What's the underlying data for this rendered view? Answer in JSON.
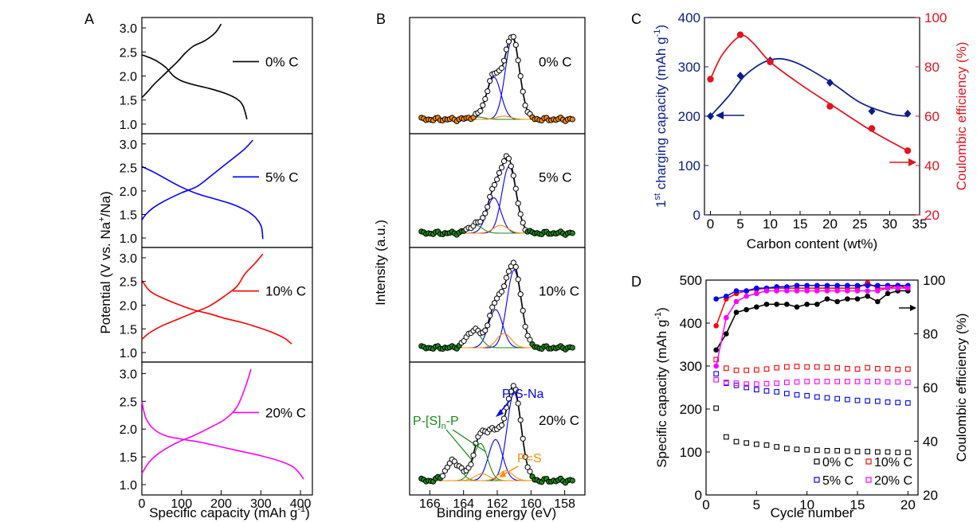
{
  "colors": {
    "black": "#000000",
    "blue": "#0000ff",
    "red": "#ff0000",
    "magenta": "#ff00ff",
    "green": "#1a8a1a",
    "orange": "#ff8c00",
    "navy": "#0a1d8c",
    "crimson": "#e8111e"
  },
  "chart_data": [
    {
      "panel": "A",
      "type": "line",
      "panel_label": "A",
      "xlabel_main": "Specific capacity (mAh g",
      "xlabel_sup": "-1",
      "xlabel_end": ")",
      "ylabel_main": "Potential (V vs. Na",
      "ylabel_sup": "+",
      "ylabel_end": "/Na)",
      "xlim": [
        0,
        430
      ],
      "ylim": [
        0.8,
        3.2
      ],
      "x_ticks": [
        "0",
        "100",
        "200",
        "300",
        "400"
      ],
      "y_ticks": [
        "1.0",
        "1.5",
        "2.0",
        "2.5",
        "3.0"
      ],
      "subplots": [
        {
          "label": "0% C",
          "color": "#000000",
          "discharge": [
            [
              0,
              2.44
            ],
            [
              20,
              2.38
            ],
            [
              40,
              2.3
            ],
            [
              60,
              2.18
            ],
            [
              80,
              2.0
            ],
            [
              100,
              1.9
            ],
            [
              130,
              1.82
            ],
            [
              170,
              1.74
            ],
            [
              210,
              1.64
            ],
            [
              240,
              1.52
            ],
            [
              255,
              1.38
            ],
            [
              265,
              1.1
            ]
          ],
          "charge": [
            [
              0,
              1.55
            ],
            [
              15,
              1.68
            ],
            [
              30,
              1.82
            ],
            [
              50,
              1.98
            ],
            [
              70,
              2.14
            ],
            [
              90,
              2.3
            ],
            [
              110,
              2.48
            ],
            [
              130,
              2.62
            ],
            [
              160,
              2.74
            ],
            [
              185,
              2.9
            ],
            [
              200,
              3.08
            ]
          ]
        },
        {
          "label": "5% C",
          "color": "#0000ff",
          "discharge": [
            [
              0,
              2.52
            ],
            [
              30,
              2.4
            ],
            [
              60,
              2.26
            ],
            [
              100,
              2.08
            ],
            [
              140,
              1.94
            ],
            [
              180,
              1.84
            ],
            [
              220,
              1.74
            ],
            [
              250,
              1.64
            ],
            [
              275,
              1.52
            ],
            [
              292,
              1.38
            ],
            [
              302,
              1.22
            ],
            [
              305,
              0.98
            ]
          ],
          "charge": [
            [
              0,
              1.38
            ],
            [
              10,
              1.5
            ],
            [
              30,
              1.65
            ],
            [
              60,
              1.8
            ],
            [
              100,
              1.96
            ],
            [
              140,
              2.1
            ],
            [
              180,
              2.36
            ],
            [
              210,
              2.56
            ],
            [
              240,
              2.76
            ],
            [
              260,
              2.9
            ],
            [
              280,
              3.08
            ]
          ]
        },
        {
          "label": "10% C",
          "color": "#ff0000",
          "discharge": [
            [
              0,
              2.52
            ],
            [
              20,
              2.3
            ],
            [
              50,
              2.16
            ],
            [
              90,
              2.02
            ],
            [
              130,
              1.9
            ],
            [
              170,
              1.82
            ],
            [
              210,
              1.72
            ],
            [
              250,
              1.64
            ],
            [
              290,
              1.54
            ],
            [
              330,
              1.42
            ],
            [
              360,
              1.3
            ],
            [
              378,
              1.18
            ]
          ],
          "charge": [
            [
              0,
              1.28
            ],
            [
              20,
              1.42
            ],
            [
              50,
              1.56
            ],
            [
              90,
              1.7
            ],
            [
              130,
              1.84
            ],
            [
              170,
              1.98
            ],
            [
              210,
              2.2
            ],
            [
              240,
              2.4
            ],
            [
              260,
              2.66
            ],
            [
              285,
              2.88
            ],
            [
              305,
              3.08
            ]
          ]
        },
        {
          "label": "20% C",
          "color": "#ff00ff",
          "discharge": [
            [
              0,
              2.5
            ],
            [
              10,
              2.2
            ],
            [
              30,
              2.0
            ],
            [
              60,
              1.88
            ],
            [
              100,
              1.82
            ],
            [
              150,
              1.76
            ],
            [
              200,
              1.68
            ],
            [
              250,
              1.6
            ],
            [
              300,
              1.52
            ],
            [
              350,
              1.42
            ],
            [
              385,
              1.3
            ],
            [
              408,
              1.1
            ]
          ],
          "charge": [
            [
              0,
              1.2
            ],
            [
              20,
              1.42
            ],
            [
              50,
              1.6
            ],
            [
              90,
              1.76
            ],
            [
              130,
              1.88
            ],
            [
              170,
              2.02
            ],
            [
              210,
              2.18
            ],
            [
              240,
              2.4
            ],
            [
              262,
              2.78
            ],
            [
              275,
              3.08
            ]
          ]
        }
      ]
    },
    {
      "panel": "B",
      "type": "line",
      "panel_label": "B",
      "xlabel": "Binding energy (eV)",
      "ylabel": "Intensity (a.u.)",
      "xlim": [
        167.2,
        156.8
      ],
      "x_ticks": [
        "166",
        "164",
        "162",
        "160",
        "158"
      ],
      "subplots": [
        {
          "label": "0% C",
          "marker_color": "#ff8c00",
          "peaks": [
            {
              "center": 161.1,
              "height": 1.0,
              "color": "#0000ff"
            },
            {
              "center": 162.2,
              "height": 0.52,
              "color": "#0000ff"
            },
            {
              "center": 163.2,
              "height": 0.03,
              "color": "#1a8a1a"
            },
            {
              "center": 161.6,
              "height": 0.04,
              "color": "#ff8c00"
            }
          ]
        },
        {
          "label": "5% C",
          "marker_color": "#1a8a1a",
          "peaks": [
            {
              "center": 161.3,
              "height": 0.85,
              "color": "#0000ff"
            },
            {
              "center": 162.2,
              "height": 0.45,
              "color": "#0000ff"
            },
            {
              "center": 163.3,
              "height": 0.1,
              "color": "#1a8a1a"
            },
            {
              "center": 161.8,
              "height": 0.1,
              "color": "#ff8c00"
            }
          ]
        },
        {
          "label": "10% C",
          "marker_color": "#1a8a1a",
          "peaks": [
            {
              "center": 161.0,
              "height": 0.98,
              "color": "#0000ff"
            },
            {
              "center": 162.1,
              "height": 0.48,
              "color": "#0000ff"
            },
            {
              "center": 163.4,
              "height": 0.22,
              "color": "#1a8a1a"
            },
            {
              "center": 161.6,
              "height": 0.18,
              "color": "#ff8c00"
            }
          ]
        },
        {
          "label": "20% C",
          "marker_color": "#1a8a1a",
          "peaks": [
            {
              "center": 161.0,
              "height": 0.9,
              "color": "#0000ff"
            },
            {
              "center": 162.1,
              "height": 0.42,
              "color": "#0000ff"
            },
            {
              "center": 163.0,
              "height": 0.38,
              "color": "#1a8a1a"
            },
            {
              "center": 164.6,
              "height": 0.2,
              "color": "#1a8a1a"
            },
            {
              "center": 161.5,
              "height": 0.1,
              "color": "#ff8c00"
            },
            {
              "center": 162.9,
              "height": 0.07,
              "color": "#ff8c00"
            }
          ]
        }
      ],
      "annotations": {
        "psna": "P-S-Na",
        "pss_main": "P-[S]",
        "pss_sub": "n",
        "pss_end": "-P",
        "ps_double": "P=S"
      }
    },
    {
      "panel": "C",
      "type": "scatter",
      "panel_label": "C",
      "xlabel": "Carbon content (wt%)",
      "ylabel_pre": "1",
      "ylabel_sup1": "st",
      "ylabel_mid": " charging capacity (mAh g",
      "ylabel_sup2": "-1",
      "ylabel_end": ")",
      "y2label": "Coulombic efficiency (%)",
      "xlim": [
        -1,
        35
      ],
      "ylim": [
        0,
        400
      ],
      "y2lim": [
        20,
        100
      ],
      "x_ticks": [
        "0",
        "5",
        "10",
        "15",
        "20",
        "25",
        "30",
        "35"
      ],
      "y_ticks": [
        "0",
        "100",
        "200",
        "300",
        "400"
      ],
      "y2_ticks": [
        "20",
        "40",
        "60",
        "80",
        "100"
      ],
      "series": [
        {
          "name": "1st charging capacity",
          "axis": "left",
          "color": "#0a1d8c",
          "marker": "diamond",
          "x": [
            0,
            5,
            10,
            20,
            27,
            33
          ],
          "y": [
            200,
            282,
            313,
            268,
            210,
            205
          ]
        },
        {
          "name": "Coulombic efficiency",
          "axis": "right",
          "color": "#e8111e",
          "marker": "circle",
          "x": [
            0,
            5,
            10,
            20,
            27,
            33
          ],
          "y": [
            75,
            93,
            82,
            64,
            55,
            46
          ]
        }
      ]
    },
    {
      "panel": "D",
      "type": "scatter",
      "panel_label": "D",
      "xlabel": "Cycle number",
      "ylabel_main": "Specific capacity (mAh g",
      "ylabel_sup": "-1",
      "ylabel_end": ")",
      "y2label": "Coulombic efficiency (%)",
      "xlim": [
        0,
        21
      ],
      "ylim": [
        0,
        500
      ],
      "y2lim": [
        20,
        100
      ],
      "x_ticks": [
        "0",
        "5",
        "10",
        "15",
        "20"
      ],
      "y_ticks": [
        "0",
        "100",
        "200",
        "300",
        "400",
        "500"
      ],
      "y2_ticks": [
        "20",
        "40",
        "60",
        "80",
        "100"
      ],
      "cycles": [
        1,
        2,
        3,
        4,
        5,
        6,
        7,
        8,
        9,
        10,
        11,
        12,
        13,
        14,
        15,
        16,
        17,
        18,
        19,
        20
      ],
      "capacity": [
        {
          "name": "0% C",
          "color": "#000000",
          "values": [
            202,
            135,
            124,
            121,
            118,
            116,
            112,
            108,
            106,
            105,
            104,
            103,
            103,
            102,
            101,
            101,
            100,
            100,
            99,
            99
          ]
        },
        {
          "name": "10% C",
          "color": "#ff0000",
          "values": [
            315,
            295,
            290,
            290,
            291,
            293,
            296,
            298,
            299,
            298,
            298,
            297,
            296,
            294,
            293,
            296,
            294,
            294,
            292,
            293
          ]
        },
        {
          "name": "5% C",
          "color": "#0000ff",
          "values": [
            282,
            260,
            255,
            250,
            245,
            242,
            240,
            236,
            233,
            231,
            228,
            226,
            224,
            222,
            220,
            219,
            218,
            216,
            215,
            214
          ]
        },
        {
          "name": "20% C",
          "color": "#ff00ff",
          "values": [
            268,
            262,
            260,
            258,
            258,
            259,
            260,
            262,
            263,
            264,
            264,
            264,
            264,
            264,
            264,
            264,
            264,
            263,
            263,
            262
          ]
        }
      ],
      "efficiency": [
        {
          "name": "0% C",
          "color": "#000000",
          "values": [
            74,
            80,
            88,
            89,
            90,
            91,
            91,
            91,
            90,
            91,
            91,
            93,
            92,
            93,
            93,
            94,
            92,
            95,
            96,
            96
          ]
        },
        {
          "name": "10% C",
          "color": "#ff0000",
          "values": [
            83,
            93,
            95,
            96,
            96.5,
            97,
            97,
            97,
            97,
            97,
            97,
            97,
            97,
            97,
            97,
            99,
            97,
            97,
            98,
            97
          ]
        },
        {
          "name": "5% C",
          "color": "#0000ff",
          "values": [
            93,
            94,
            96,
            96,
            97,
            97,
            97.5,
            97.5,
            98,
            98,
            98,
            98,
            98,
            98,
            98,
            98,
            98,
            98,
            98,
            98
          ]
        },
        {
          "name": "20% C",
          "color": "#ff00ff",
          "values": [
            68,
            86,
            92,
            94,
            95,
            96,
            96,
            96,
            96,
            96,
            96,
            96,
            96,
            96,
            96,
            96,
            96,
            97,
            97,
            97
          ]
        }
      ]
    }
  ]
}
